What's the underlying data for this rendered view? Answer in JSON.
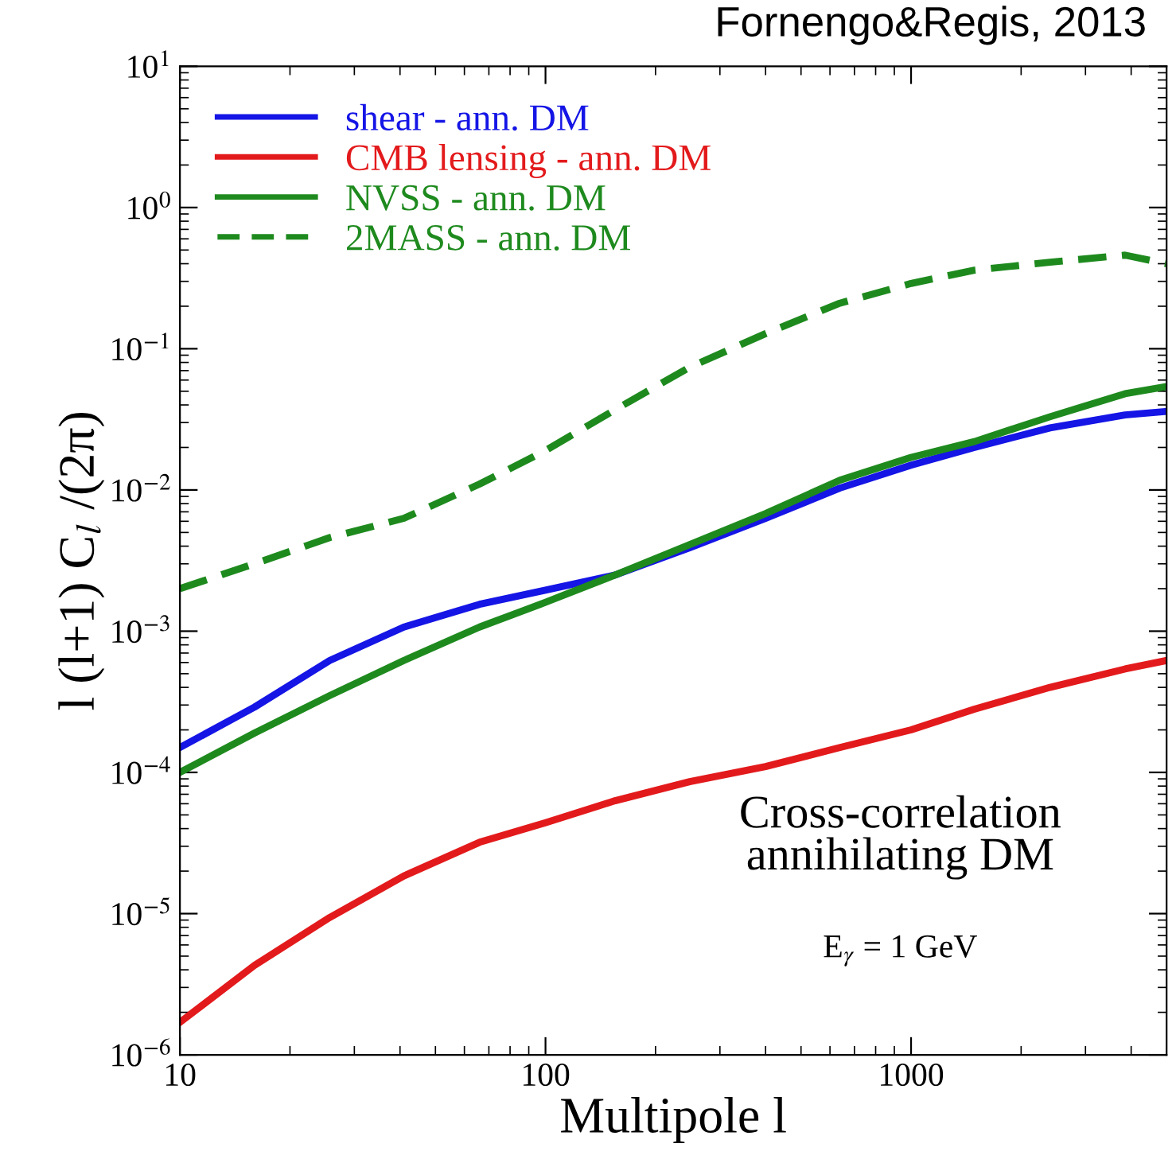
{
  "chart_data": {
    "type": "line",
    "xlabel": "Multipole l",
    "ylabel": "l (l+1) C$_{l}$ /(2π)",
    "log": "xy",
    "xlim": [
      10,
      5000
    ],
    "ylim": [
      1e-06,
      10
    ],
    "xticks": [
      10,
      100,
      1000
    ],
    "yticks": [
      {
        "value": 1e-06,
        "label": "10$^{−6}$"
      },
      {
        "value": 1e-05,
        "label": "10$^{−5}$"
      },
      {
        "value": 0.0001,
        "label": "10$^{−4}$"
      },
      {
        "value": 0.001,
        "label": "10$^{−3}$"
      },
      {
        "value": 0.01,
        "label": "10$^{−2}$"
      },
      {
        "value": 0.1,
        "label": "10$^{−1}$"
      },
      {
        "value": 1,
        "label": "10$^{0}$"
      },
      {
        "value": 10,
        "label": "10$^{1}$"
      }
    ],
    "x": [
      10,
      16,
      25.7,
      41,
      66,
      100,
      155,
      248,
      400,
      638,
      1000,
      1490,
      2400,
      3850,
      5000
    ],
    "series": [
      {
        "name": "shear - ann. DM",
        "color": "#1515e6",
        "line_style": "solid",
        "values": [
          0.00015,
          0.00029,
          0.00062,
          0.00107,
          0.00155,
          0.00195,
          0.0025,
          0.0039,
          0.0063,
          0.0103,
          0.015,
          0.02,
          0.0275,
          0.034,
          0.036
        ]
      },
      {
        "name": "CMB lensing - ann. DM",
        "color": "#e31a1c",
        "line_style": "solid",
        "values": [
          1.7e-06,
          4.3e-06,
          9.4e-06,
          1.85e-05,
          3.2e-05,
          4.4e-05,
          6.3e-05,
          8.6e-05,
          0.00011,
          0.00015,
          0.0002,
          0.00028,
          0.0004,
          0.00054,
          0.00062
        ]
      },
      {
        "name": "NVSS - ann. DM",
        "color": "#1e8a1e",
        "line_style": "solid",
        "values": [
          0.0001,
          0.00019,
          0.00035,
          0.00062,
          0.00107,
          0.0016,
          0.0025,
          0.0041,
          0.0068,
          0.0117,
          0.017,
          0.022,
          0.033,
          0.048,
          0.054
        ]
      },
      {
        "name": "2MASS - ann. DM",
        "color": "#1e8a1e",
        "line_style": "dashed",
        "values": [
          0.002,
          0.003,
          0.0046,
          0.0063,
          0.011,
          0.019,
          0.037,
          0.074,
          0.128,
          0.21,
          0.29,
          0.36,
          0.41,
          0.46,
          0.4
        ]
      }
    ],
    "legend": "top left",
    "annotations": [
      "Cross-correlation\nannihilating DM",
      "E$_{γ}$ = 1 GeV",
      "Fornengo&Regis, 2013"
    ]
  }
}
